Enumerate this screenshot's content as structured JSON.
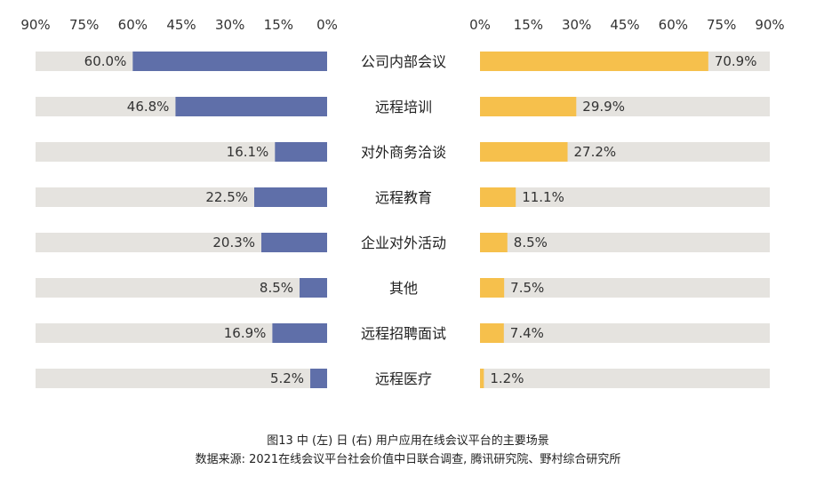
{
  "chart_data": {
    "type": "bar",
    "categories": [
      "公司内部会议",
      "远程培训",
      "对外商务洽谈",
      "远程教育",
      "企业对外活动",
      "其他",
      "远程招聘面试",
      "远程医疗"
    ],
    "xlim": [
      0,
      90
    ],
    "ticks": [
      "90%",
      "75%",
      "60%",
      "45%",
      "30%",
      "15%",
      "0%"
    ],
    "ticks_right": [
      "0%",
      "15%",
      "30%",
      "45%",
      "60%",
      "75%",
      "90%"
    ],
    "series": [
      {
        "name": "中",
        "side": "left",
        "color": "#5F6FA9",
        "values": [
          60.0,
          46.8,
          16.1,
          22.5,
          20.3,
          8.5,
          16.9,
          5.2
        ],
        "labels": [
          "60.0%",
          "46.8%",
          "16.1%",
          "22.5%",
          "20.3%",
          "8.5%",
          "16.9%",
          "5.2%"
        ]
      },
      {
        "name": "日",
        "side": "right",
        "color": "#F6C04C",
        "values": [
          70.9,
          29.9,
          27.2,
          11.1,
          8.5,
          7.5,
          7.4,
          1.2
        ],
        "labels": [
          "70.9%",
          "29.9%",
          "27.2%",
          "11.1%",
          "8.5%",
          "7.5%",
          "7.4%",
          "1.2%"
        ]
      }
    ],
    "track_color": "#E5E3DF",
    "grid": false
  },
  "caption": {
    "title": "图13  中 (左) 日 (右) 用户应用在线会议平台的主要场景",
    "source": "数据来源: 2021在线会议平台社会价值中日联合调查, 腾讯研究院、野村综合研究所"
  }
}
